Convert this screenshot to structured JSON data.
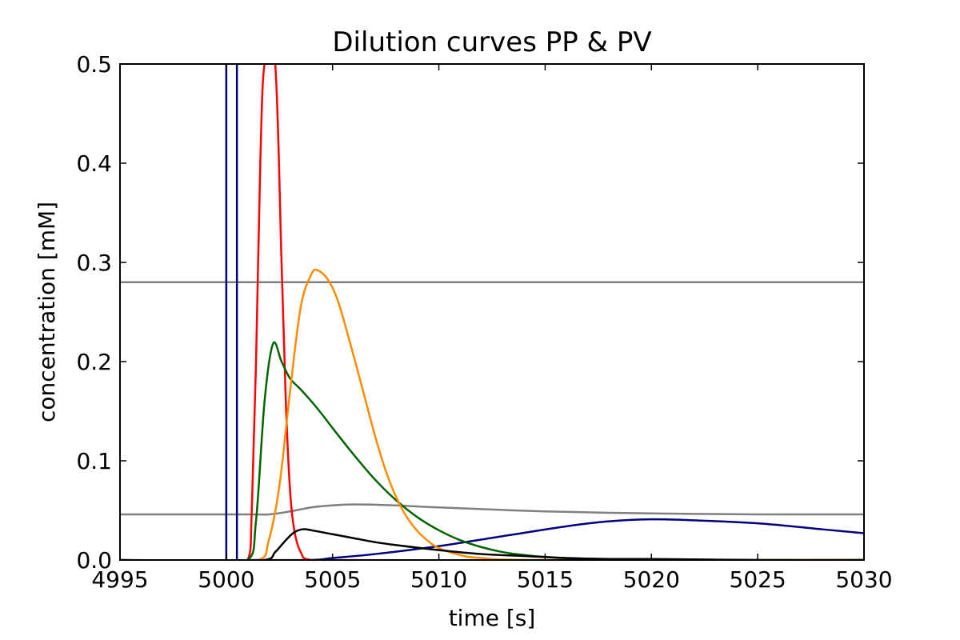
{
  "chart_data": {
    "type": "line",
    "title": "Dilution curves PP & PV",
    "xlabel": "time [s]",
    "ylabel": "concentration [mM]",
    "xlim": [
      4995,
      5030
    ],
    "ylim": [
      0,
      0.5
    ],
    "xticks": [
      4995,
      5000,
      5005,
      5010,
      5015,
      5020,
      5025,
      5030
    ],
    "xtick_labels": [
      "4995",
      "5000",
      "5005",
      "5010",
      "5015",
      "5020",
      "5025",
      "5030"
    ],
    "yticks": [
      0,
      0.1,
      0.2,
      0.3,
      0.4,
      0.5
    ],
    "ytick_labels": [
      "0.0",
      "0.1",
      "0.2",
      "0.3",
      "0.4",
      "0.5"
    ],
    "grid": false,
    "legend": "none",
    "series": [
      {
        "color": "#808080",
        "x": [
          4995,
          5030
        ],
        "y": [
          0.28,
          0.28
        ]
      },
      {
        "color": "#808080",
        "x": [
          4995,
          5001,
          5002,
          5003,
          5004,
          5005,
          5006,
          5008,
          5010,
          5015,
          5020,
          5025,
          5030
        ],
        "y": [
          0.046,
          0.046,
          0.046,
          0.049,
          0.053,
          0.055,
          0.056,
          0.055,
          0.053,
          0.049,
          0.047,
          0.046,
          0.046
        ]
      },
      {
        "color": "#000080",
        "x": [
          4995,
          5000,
          5000,
          5000,
          5000.5,
          5000.5,
          5000.5,
          5001,
          5004,
          5005,
          5007,
          5010,
          5013,
          5016,
          5018,
          5020,
          5022,
          5025,
          5028,
          5030
        ],
        "y": [
          0,
          0,
          0.5,
          0,
          0,
          0.5,
          0,
          0,
          0,
          0.002,
          0.006,
          0.014,
          0.024,
          0.034,
          0.039,
          0.041,
          0.04,
          0.037,
          0.031,
          0.027
        ]
      },
      {
        "color": "#ff0000",
        "x": [
          4995,
          5001,
          5001.2,
          5001.4,
          5001.6,
          5001.8,
          5002.3,
          5002.6,
          5002.8,
          5003,
          5003.2,
          5003.5,
          5004,
          5030
        ],
        "y": [
          0,
          0,
          0.05,
          0.2,
          0.4,
          0.5,
          0.5,
          0.3,
          0.16,
          0.07,
          0.03,
          0.008,
          0,
          0
        ]
      },
      {
        "color": "#006400",
        "x": [
          4995,
          5001,
          5001.4,
          5001.8,
          5002.2,
          5002.6,
          5003,
          5003.5,
          5004,
          5004.5,
          5005,
          5006,
          5007,
          5008,
          5009,
          5010,
          5011,
          5012,
          5013,
          5014,
          5015,
          5017,
          5020,
          5025,
          5030
        ],
        "y": [
          0,
          0,
          0.04,
          0.16,
          0.218,
          0.2,
          0.183,
          0.172,
          0.16,
          0.147,
          0.133,
          0.106,
          0.081,
          0.06,
          0.043,
          0.03,
          0.02,
          0.013,
          0.008,
          0.005,
          0.003,
          0.001,
          0,
          0,
          0
        ]
      },
      {
        "color": "#ff8c00",
        "x": [
          4995,
          5001.5,
          5002,
          5002.5,
          5003,
          5003.5,
          5004,
          5004.3,
          5004.8,
          5005.3,
          5006,
          5006.5,
          5007,
          5007.5,
          5008,
          5008.5,
          5009,
          5009.5,
          5010,
          5011,
          5012,
          5015,
          5030
        ],
        "y": [
          0,
          0,
          0.02,
          0.075,
          0.17,
          0.255,
          0.288,
          0.292,
          0.282,
          0.258,
          0.205,
          0.165,
          0.125,
          0.09,
          0.063,
          0.043,
          0.029,
          0.019,
          0.012,
          0.005,
          0.002,
          0,
          0
        ]
      },
      {
        "color": "#000000",
        "x": [
          4995,
          5001.8,
          5002.3,
          5002.8,
          5003.2,
          5003.6,
          5004,
          5005,
          5006,
          5007,
          5008,
          5010,
          5012,
          5014,
          5016,
          5018,
          5020,
          5025,
          5030
        ],
        "y": [
          0,
          0,
          0.008,
          0.02,
          0.028,
          0.031,
          0.03,
          0.026,
          0.022,
          0.018,
          0.015,
          0.01,
          0.006,
          0.004,
          0.002,
          0.001,
          0.001,
          0,
          0
        ]
      }
    ]
  }
}
